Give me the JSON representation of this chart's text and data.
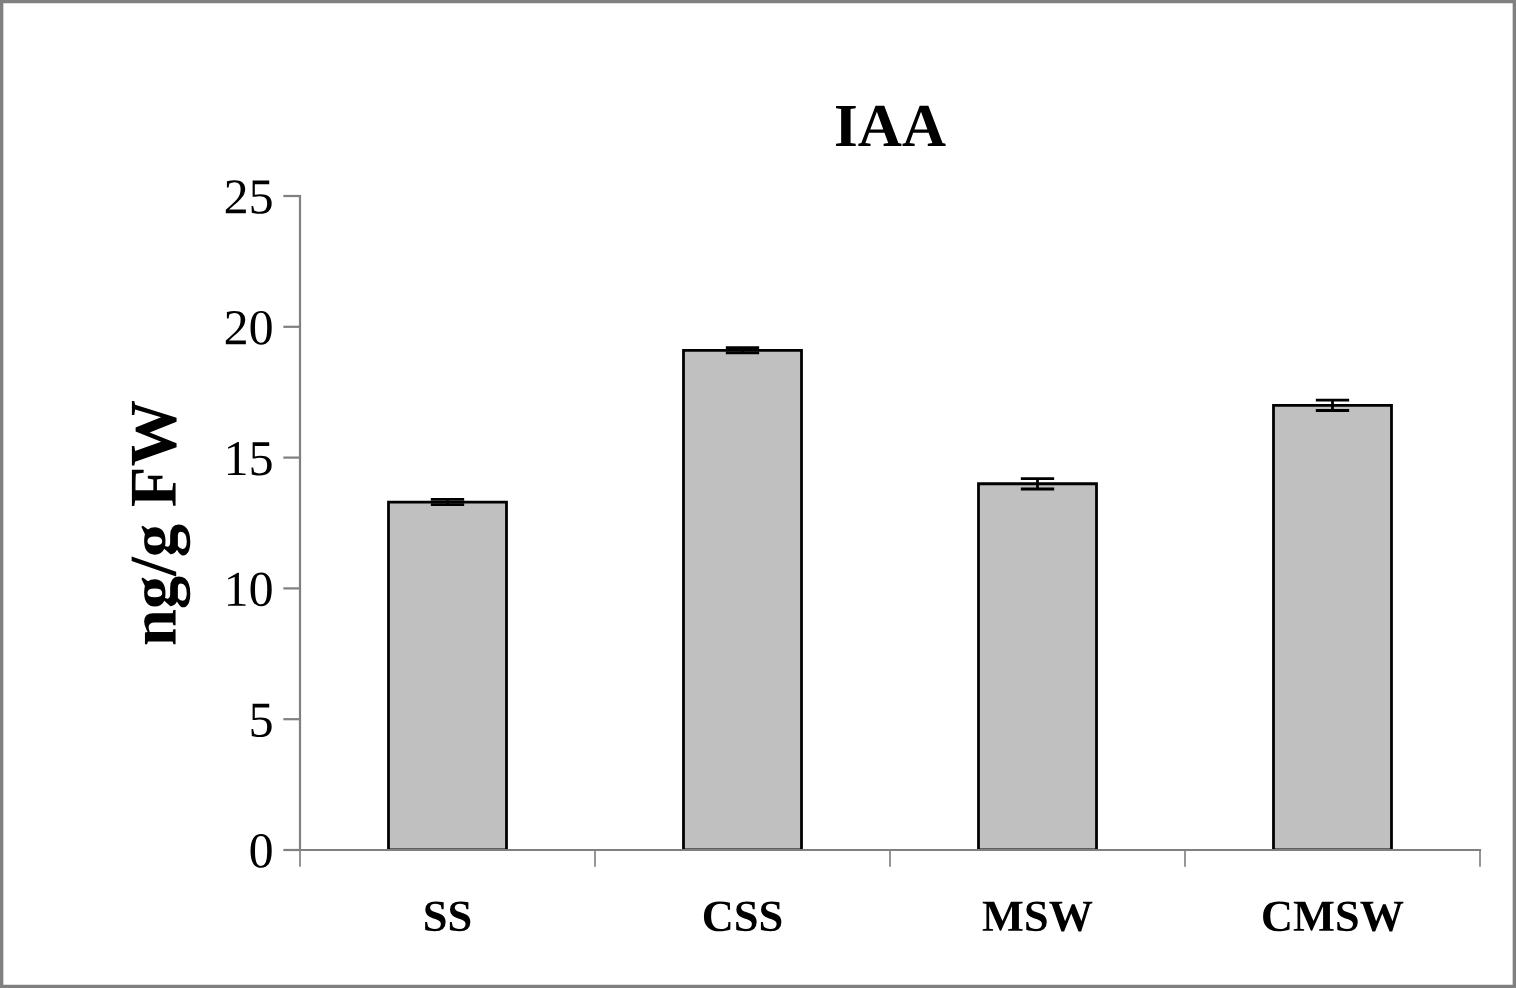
{
  "chart_data": {
    "type": "bar",
    "title": "IAA",
    "ylabel": "ng/g FW",
    "categories": [
      "SS",
      "CSS",
      "MSW",
      "CMSW"
    ],
    "values": [
      13.3,
      19.1,
      14.0,
      17.0
    ],
    "errors": [
      0.1,
      0.1,
      0.2,
      0.2
    ],
    "color": "#c0c0c0",
    "ylim": [
      0,
      25
    ],
    "yticks": [
      0,
      5,
      10,
      15,
      20,
      25
    ],
    "grid": false,
    "legend": false
  }
}
